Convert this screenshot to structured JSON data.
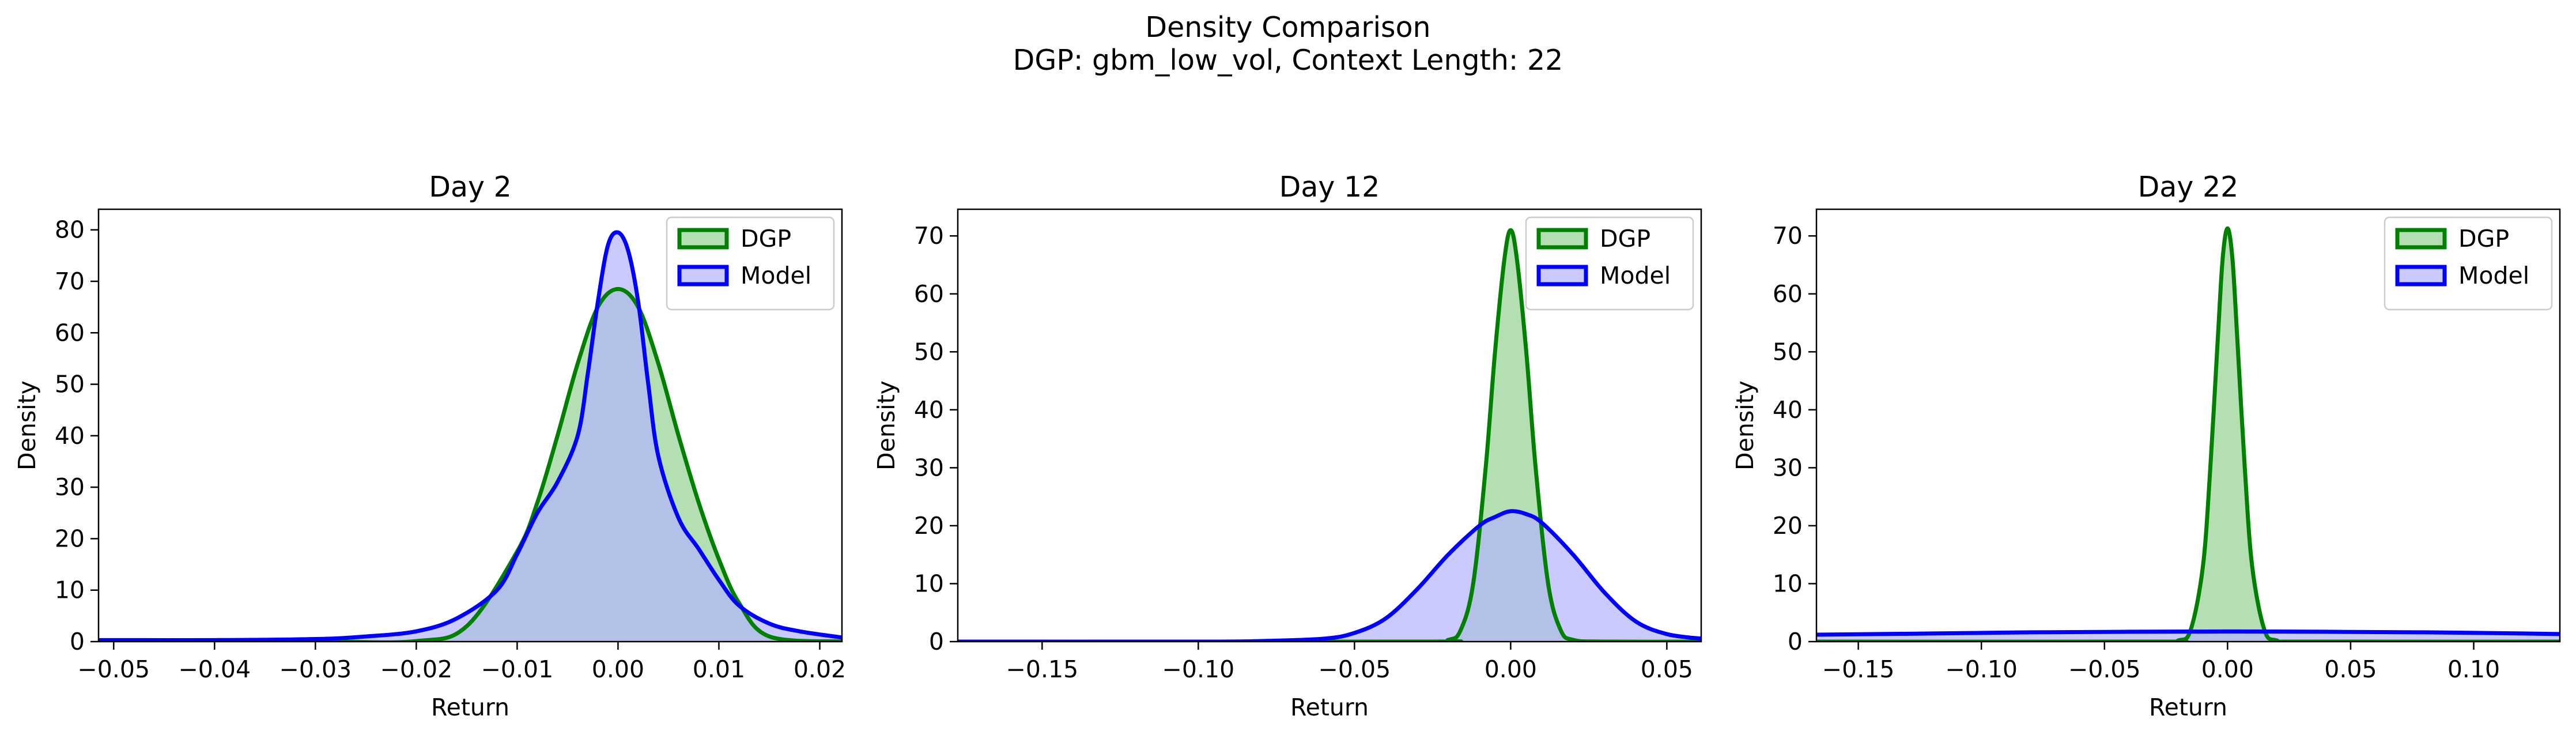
{
  "figure": {
    "title_line1": "Density Comparison",
    "title_line2": "DGP: gbm_low_vol, Context Length: 22"
  },
  "colors": {
    "dgp_line": "#008000",
    "dgp_fill": "#b3dfb3",
    "model_line": "#0000ff",
    "model_fill": "#b3b3ff",
    "overlap_fill": "#7a96c8"
  },
  "chart_data": [
    {
      "type": "area",
      "title": "Day 2",
      "xlabel": "Return",
      "ylabel": "Density",
      "xlim": [
        -0.0515,
        0.0222
      ],
      "ylim": [
        0,
        84
      ],
      "xticks": [
        -0.05,
        -0.04,
        -0.03,
        -0.02,
        -0.01,
        0.0,
        0.01,
        0.02
      ],
      "xticklabels": [
        "−0.05",
        "−0.04",
        "−0.03",
        "−0.02",
        "−0.01",
        "0.00",
        "0.01",
        "0.02"
      ],
      "yticks": [
        0,
        10,
        20,
        30,
        40,
        50,
        60,
        70,
        80
      ],
      "legend": {
        "position": "upper right",
        "entries": [
          "DGP",
          "Model"
        ]
      },
      "series": [
        {
          "name": "DGP",
          "x": [
            -0.0515,
            -0.03,
            -0.02,
            -0.015,
            -0.01,
            -0.008,
            -0.006,
            -0.004,
            -0.002,
            0.0,
            0.002,
            0.004,
            0.006,
            0.008,
            0.01,
            0.012,
            0.015,
            0.0222
          ],
          "y": [
            0,
            0,
            0.1,
            3,
            17.5,
            27,
            40,
            54,
            65,
            68.5,
            65,
            54,
            40,
            27,
            16,
            7.5,
            1,
            0
          ]
        },
        {
          "name": "Model",
          "x": [
            -0.0515,
            -0.04,
            -0.03,
            -0.025,
            -0.02,
            -0.016,
            -0.012,
            -0.01,
            -0.008,
            -0.006,
            -0.004,
            -0.003,
            -0.002,
            -0.001,
            0.0,
            0.001,
            0.002,
            0.003,
            0.004,
            0.006,
            0.008,
            0.01,
            0.012,
            0.015,
            0.018,
            0.0222
          ],
          "y": [
            0.3,
            0.3,
            0.5,
            1,
            2,
            4.5,
            10,
            17,
            25,
            31,
            40,
            52,
            66,
            77,
            79.5,
            76,
            66,
            50,
            36,
            24,
            18,
            12,
            7,
            3.5,
            2,
            0.8
          ]
        }
      ]
    },
    {
      "type": "area",
      "title": "Day 12",
      "xlabel": "Return",
      "ylabel": "Density",
      "xlim": [
        -0.177,
        0.061
      ],
      "ylim": [
        0,
        74.6
      ],
      "xticks": [
        -0.15,
        -0.1,
        -0.05,
        0.0,
        0.05
      ],
      "xticklabels": [
        "−0.15",
        "−0.10",
        "−0.05",
        "0.00",
        "0.05"
      ],
      "yticks": [
        0,
        10,
        20,
        30,
        40,
        50,
        60,
        70
      ],
      "legend": {
        "position": "upper right",
        "entries": [
          "DGP",
          "Model"
        ]
      },
      "series": [
        {
          "name": "DGP",
          "x": [
            -0.177,
            -0.03,
            -0.02,
            -0.016,
            -0.012,
            -0.008,
            -0.005,
            -0.002,
            0.0,
            0.002,
            0.005,
            0.008,
            0.012,
            0.016,
            0.02,
            0.03,
            0.061
          ],
          "y": [
            0,
            0,
            0.3,
            2,
            10,
            30,
            50,
            66,
            71,
            66,
            50,
            30,
            10,
            2,
            0.3,
            0,
            0
          ]
        },
        {
          "name": "Model",
          "x": [
            -0.177,
            -0.1,
            -0.08,
            -0.06,
            -0.05,
            -0.04,
            -0.03,
            -0.02,
            -0.01,
            -0.005,
            0.0,
            0.005,
            0.01,
            0.02,
            0.03,
            0.04,
            0.05,
            0.061
          ],
          "y": [
            0,
            0,
            0.1,
            0.5,
            1.5,
            4,
            9,
            15,
            20,
            21.5,
            22.5,
            22,
            20.5,
            15,
            8.5,
            3.5,
            1.3,
            0.5
          ]
        }
      ]
    },
    {
      "type": "area",
      "title": "Day 22",
      "xlabel": "Return",
      "ylabel": "Density",
      "xlim": [
        -0.167,
        0.135
      ],
      "ylim": [
        0,
        74.6
      ],
      "xticks": [
        -0.15,
        -0.1,
        -0.05,
        0.0,
        0.05,
        0.1
      ],
      "xticklabels": [
        "−0.15",
        "−0.10",
        "−0.05",
        "0.00",
        "0.05",
        "0.10"
      ],
      "yticks": [
        0,
        10,
        20,
        30,
        40,
        50,
        60,
        70
      ],
      "legend": {
        "position": "upper right",
        "entries": [
          "DGP",
          "Model"
        ]
      },
      "series": [
        {
          "name": "DGP",
          "x": [
            -0.167,
            -0.03,
            -0.02,
            -0.015,
            -0.01,
            -0.007,
            -0.004,
            -0.002,
            0.0,
            0.002,
            0.004,
            0.007,
            0.01,
            0.015,
            0.02,
            0.03,
            0.135
          ],
          "y": [
            0,
            0,
            0.2,
            2,
            13,
            30,
            52,
            66,
            71.3,
            66,
            52,
            30,
            13,
            2,
            0.2,
            0,
            0
          ]
        },
        {
          "name": "Model",
          "x": [
            -0.167,
            -0.12,
            -0.08,
            -0.04,
            0.0,
            0.04,
            0.08,
            0.12,
            0.135
          ],
          "y": [
            1.2,
            1.4,
            1.6,
            1.7,
            1.75,
            1.7,
            1.6,
            1.4,
            1.3
          ]
        }
      ]
    }
  ]
}
